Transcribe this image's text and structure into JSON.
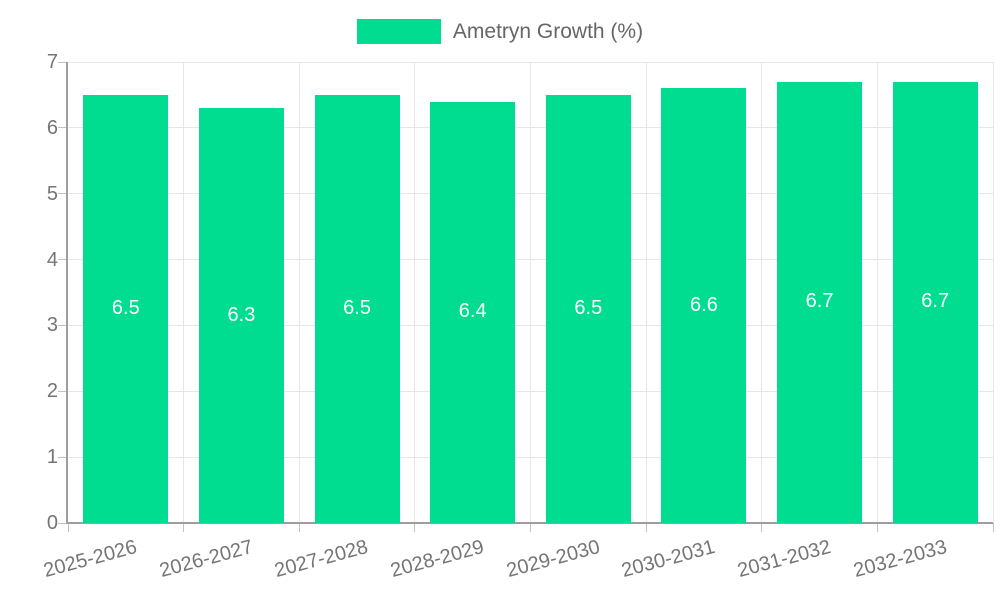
{
  "legend": {
    "swatch_color": "#00dc90"
  },
  "colors": {
    "bar": "#00dc90",
    "bar_label": "#ffffff",
    "grid": "#e6e6e6",
    "axis": "#9e9e9e",
    "tick": "#c2c2c2",
    "axis_text": "#757575",
    "legend_text": "#666666",
    "background": "#ffffff"
  },
  "chart_data": {
    "type": "bar",
    "title": "",
    "categories": [
      "2025-2026",
      "2026-2027",
      "2027-2028",
      "2028-2029",
      "2029-2030",
      "2030-2031",
      "2031-2032",
      "2032-2033"
    ],
    "series": [
      {
        "name": "Ametryn Growth (%)",
        "values": [
          6.5,
          6.3,
          6.5,
          6.4,
          6.5,
          6.6,
          6.7,
          6.7
        ]
      }
    ],
    "bar_value_labels": [
      "6.5",
      "6.3",
      "6.5",
      "6.4",
      "6.5",
      "6.6",
      "6.7",
      "6.7"
    ],
    "ylim": [
      0,
      7
    ],
    "yticks": [
      0,
      1,
      2,
      3,
      4,
      5,
      6,
      7
    ],
    "grid": true,
    "legend_position": "top-center",
    "value_label_position": "inside-center",
    "x_label_rotation_deg": -15
  }
}
